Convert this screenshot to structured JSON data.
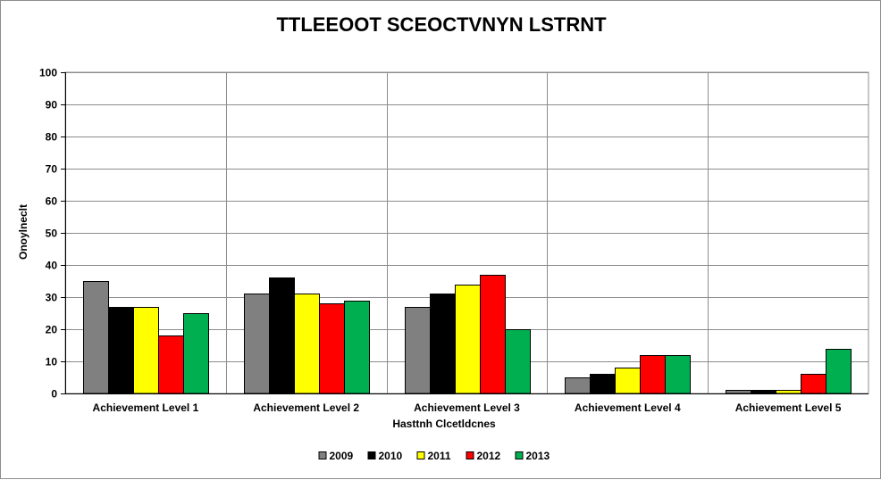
{
  "chart_data": {
    "type": "bar",
    "title": "TTLEEOOT SCEOCTVNYN LSTRNT",
    "xlabel": "Hasttnh Clcetldcnes",
    "ylabel": "Onoylneclt",
    "categories": [
      "Achievement Level 1",
      "Achievement Level 2",
      "Achievement Level 3",
      "Achievement Level 4",
      "Achievement Level 5"
    ],
    "series": [
      {
        "name": "2009",
        "color": "#808080",
        "values": [
          35,
          31,
          27,
          5,
          1
        ]
      },
      {
        "name": "2010",
        "color": "#000000",
        "values": [
          27,
          36,
          31,
          6,
          1
        ]
      },
      {
        "name": "2011",
        "color": "#ffff00",
        "values": [
          27,
          31,
          34,
          8,
          1
        ]
      },
      {
        "name": "2012",
        "color": "#ff0000",
        "values": [
          18,
          28,
          37,
          12,
          6
        ]
      },
      {
        "name": "2013",
        "color": "#00b050",
        "values": [
          25,
          29,
          20,
          12,
          14
        ]
      }
    ],
    "ylim": [
      0,
      100
    ],
    "yticks": [
      "0",
      "10",
      "20",
      "30",
      "40",
      "50",
      "60",
      "70",
      "80",
      "90",
      "100"
    ],
    "grid": true,
    "legend": "bottom"
  }
}
